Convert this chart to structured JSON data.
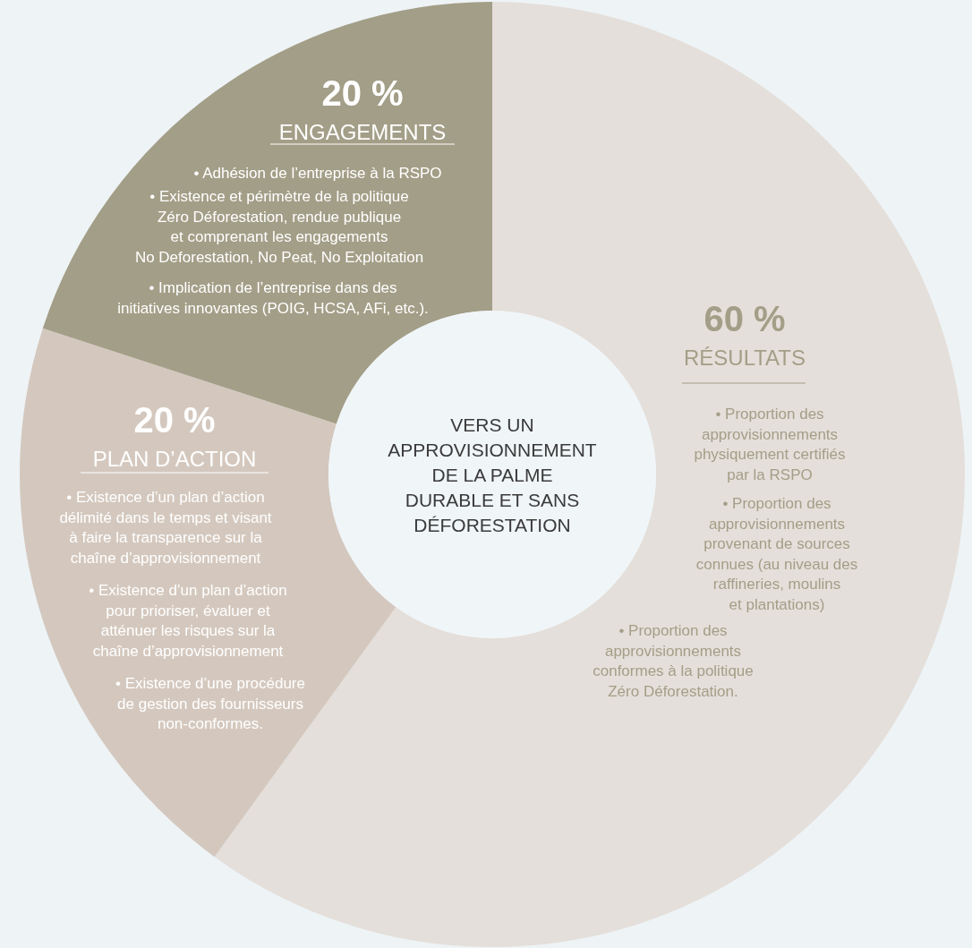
{
  "chart_data": {
    "type": "donut",
    "title": "VERS UN APPROVISIONNEMENT DE LA PALME DURABLE ET SANS DÉFORESTATION",
    "categories": [
      "RÉSULTATS",
      "PLAN D’ACTION",
      "ENGAGEMENTS"
    ],
    "values": [
      60,
      20,
      20
    ],
    "colors": [
      "#e4dfda",
      "#d4c8be",
      "#a39e87"
    ],
    "value_labels": [
      "60 %",
      "20 %",
      "20 %"
    ],
    "annotations": [
      "• Proportion des\napprovisionnements\nphysiquement certifiés\npar la RSPO",
      "• Proportion des\napprovisionnements\nprovenant de sources\nconnues (au niveau des\nraffineries, moulins\net plantations)",
      "• Proportion des\napprovisionnements\nconformes à la politique\nZéro Déforestation.",
      "• Existence d’un plan d’action\ndélimité dans le temps et visant\nà faire la transparence sur la\nchaîne d’approvisionnement",
      "• Existence d’un plan d’action\npour prioriser, évaluer et\natténuer les risques sur la\nchaîne d’approvisionnement",
      "• Existence d’une procédure\nde gestion des fournisseurs\nnon-conformes.",
      "• Adhésion de l’entreprise à la RSPO",
      "• Existence et périmètre de la politique\nZéro Déforestation, rendue publique\net comprenant les engagements\nNo Deforestation, No Peat, No Exploitation",
      "• Implication de l’entreprise dans des\ninitiatives innovantes (POIG, HCSA, AFi, etc.)."
    ]
  }
}
